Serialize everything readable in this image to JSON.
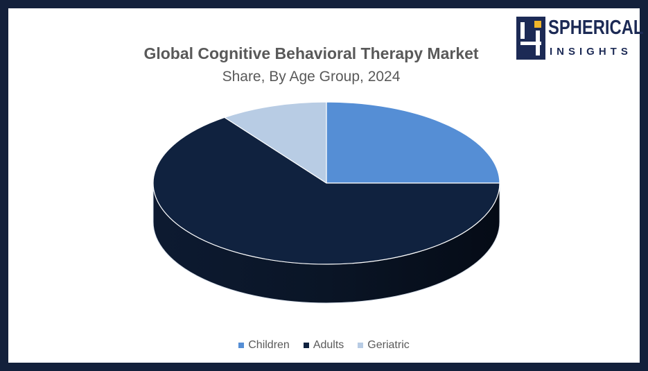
{
  "brand": {
    "name_line1": "SPHERICAL",
    "name_line2": "INSIGHTS",
    "colors": {
      "navy": "#1c2a55",
      "gold": "#f0b52a"
    }
  },
  "chart_data": {
    "type": "pie",
    "title": "Global Cognitive Behavioral Therapy Market",
    "subtitle": "Share, By Age Group, 2024",
    "categories": [
      "Children",
      "Adults",
      "Geriatric"
    ],
    "values": [
      25,
      65,
      10
    ],
    "unit": "%",
    "colors": [
      "#558ed5",
      "#10223f",
      "#b8cce4"
    ],
    "legend_position": "bottom",
    "style": "3d"
  }
}
